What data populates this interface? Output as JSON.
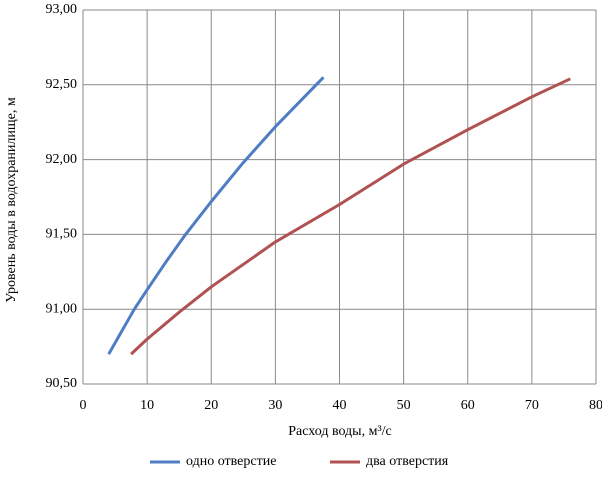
{
  "chart_data": {
    "type": "line",
    "xlabel": "Расход воды, м³/с",
    "ylabel": "Уровень воды в водохранилище, м",
    "xlim": [
      0,
      80
    ],
    "xticks": [
      0,
      10,
      20,
      30,
      40,
      50,
      60,
      70,
      80
    ],
    "ylim": [
      90.5,
      93.0
    ],
    "yticks": [
      {
        "value": 90.5,
        "label": "90,50"
      },
      {
        "value": 91.0,
        "label": "91,00"
      },
      {
        "value": 91.5,
        "label": "91,50"
      },
      {
        "value": 92.0,
        "label": "92,00"
      },
      {
        "value": 92.5,
        "label": "92,50"
      },
      {
        "value": 93.0,
        "label": "93,00"
      }
    ],
    "grid": true,
    "legend": "bottom",
    "series": [
      {
        "name": "одно отверстие",
        "color": "#4f7dc4",
        "x": [
          4,
          6,
          8,
          10,
          13,
          16,
          20,
          25,
          30,
          35,
          37.5
        ],
        "values": [
          90.7,
          90.85,
          91.0,
          91.13,
          91.32,
          91.5,
          91.72,
          91.98,
          92.22,
          92.44,
          92.55
        ]
      },
      {
        "name": "два отверстия",
        "color": "#b05252",
        "x": [
          7.5,
          10,
          15,
          20,
          30,
          40,
          50,
          60,
          70,
          76
        ],
        "values": [
          90.7,
          90.8,
          90.98,
          91.15,
          91.45,
          91.7,
          91.97,
          92.2,
          92.42,
          92.54
        ]
      }
    ]
  }
}
